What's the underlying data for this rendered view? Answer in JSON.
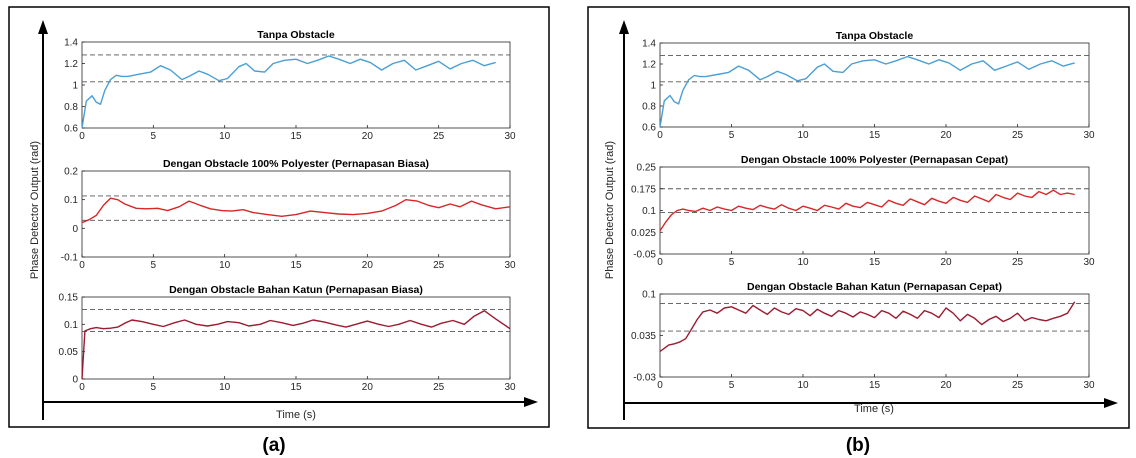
{
  "figure": {
    "panel_captions": [
      "(a)",
      "(b)"
    ],
    "colors": {
      "threshold": "#555555",
      "series_blue": "#4a9fd4",
      "series_red": "#d62728",
      "series_darkred": "#9b1b30",
      "frame": "#000000"
    }
  },
  "chart_data": [
    {
      "panel": "(a)",
      "ylabel": "Phase Detector Output (rad)",
      "xlabel": "Time (s)",
      "subplots": [
        {
          "type": "line",
          "title": "Tanpa Obstacle",
          "xlim": [
            0,
            30
          ],
          "ylim": [
            0.6,
            1.4
          ],
          "xticks": [
            0,
            5,
            10,
            15,
            20,
            25,
            30
          ],
          "yticks": [
            0.6,
            0.8,
            1,
            1.2,
            1.4
          ],
          "ytick_labels": [
            "0.6",
            "0.8",
            "1",
            "1.2",
            "1.4"
          ],
          "thresholds": [
            1.28,
            1.03
          ],
          "color": "#4a9fd4",
          "series": [
            {
              "x": [
                0,
                0.3,
                0.7,
                1.0,
                1.3,
                1.6,
                2.0,
                2.4,
                2.8,
                3.2,
                4.0,
                4.8,
                5.5,
                6.2,
                7.0,
                7.5,
                8.2,
                8.8,
                9.6,
                10.2,
                11.0,
                11.5,
                12.1,
                12.8,
                13.4,
                14.2,
                15.0,
                15.8,
                16.5,
                17.3,
                18.0,
                18.8,
                19.5,
                20.2,
                21.0,
                21.8,
                22.6,
                23.4,
                24.2,
                25.0,
                25.8,
                26.6,
                27.4,
                28.2,
                29.0
              ],
              "y": [
                0.6,
                0.85,
                0.9,
                0.84,
                0.82,
                0.95,
                1.05,
                1.09,
                1.08,
                1.08,
                1.1,
                1.12,
                1.18,
                1.14,
                1.05,
                1.08,
                1.13,
                1.1,
                1.04,
                1.06,
                1.17,
                1.2,
                1.13,
                1.12,
                1.2,
                1.23,
                1.24,
                1.2,
                1.23,
                1.27,
                1.24,
                1.2,
                1.24,
                1.21,
                1.14,
                1.2,
                1.23,
                1.14,
                1.18,
                1.22,
                1.15,
                1.2,
                1.23,
                1.18,
                1.21
              ]
            }
          ]
        },
        {
          "type": "line",
          "title": "Dengan Obstacle 100% Polyester (Pernapasan Biasa)",
          "xlim": [
            0,
            30
          ],
          "ylim": [
            -0.1,
            0.2
          ],
          "xticks": [
            0,
            5,
            10,
            15,
            20,
            25,
            30
          ],
          "yticks": [
            -0.1,
            0,
            0.1,
            0.2
          ],
          "ytick_labels": [
            "-0.1",
            "0",
            "0.1",
            "0.2"
          ],
          "thresholds": [
            0.113,
            0.028
          ],
          "color": "#d62728",
          "series": [
            {
              "x": [
                0,
                0.5,
                1.0,
                1.5,
                2.0,
                2.5,
                3.0,
                3.8,
                4.5,
                5.3,
                6.0,
                6.8,
                7.5,
                8.3,
                9.0,
                9.8,
                10.5,
                11.3,
                12.0,
                13.0,
                14.0,
                15.0,
                16.0,
                17.0,
                18.0,
                19.0,
                20.0,
                21.0,
                22.0,
                22.7,
                23.5,
                24.3,
                25.0,
                25.8,
                26.5,
                27.3,
                28.0,
                29.0,
                30.0
              ],
              "y": [
                0.02,
                0.03,
                0.045,
                0.08,
                0.105,
                0.1,
                0.085,
                0.07,
                0.068,
                0.07,
                0.062,
                0.075,
                0.095,
                0.08,
                0.068,
                0.062,
                0.06,
                0.065,
                0.055,
                0.048,
                0.042,
                0.048,
                0.06,
                0.055,
                0.05,
                0.048,
                0.052,
                0.06,
                0.08,
                0.1,
                0.095,
                0.08,
                0.072,
                0.085,
                0.075,
                0.095,
                0.082,
                0.068,
                0.075
              ]
            }
          ]
        },
        {
          "type": "line",
          "title": "Dengan Obstacle Bahan Katun (Pernapasan Biasa)",
          "xlim": [
            0,
            30
          ],
          "ylim": [
            0,
            0.15
          ],
          "xticks": [
            0,
            5,
            10,
            15,
            20,
            25,
            30
          ],
          "yticks": [
            0,
            0.05,
            0.1,
            0.15
          ],
          "ytick_labels": [
            "0",
            "0.05",
            "0.1",
            "0.15"
          ],
          "thresholds": [
            0.127,
            0.087
          ],
          "color": "#9b1b30",
          "series": [
            {
              "x": [
                0,
                0.2,
                0.6,
                1.0,
                1.5,
                2.0,
                2.5,
                3.0,
                3.5,
                4.2,
                5.0,
                5.7,
                6.5,
                7.2,
                8.0,
                8.8,
                9.5,
                10.2,
                11.0,
                11.7,
                12.5,
                13.2,
                14.0,
                14.8,
                15.5,
                16.2,
                17.0,
                17.8,
                18.5,
                19.2,
                20.0,
                20.8,
                21.5,
                22.2,
                23.0,
                23.8,
                24.5,
                25.2,
                26.0,
                26.8,
                27.5,
                28.2,
                29.0,
                30.0
              ],
              "y": [
                0.0,
                0.088,
                0.092,
                0.094,
                0.092,
                0.093,
                0.095,
                0.102,
                0.108,
                0.105,
                0.1,
                0.096,
                0.103,
                0.108,
                0.1,
                0.097,
                0.1,
                0.105,
                0.103,
                0.097,
                0.1,
                0.107,
                0.103,
                0.098,
                0.102,
                0.108,
                0.104,
                0.099,
                0.095,
                0.1,
                0.106,
                0.1,
                0.096,
                0.1,
                0.107,
                0.1,
                0.095,
                0.102,
                0.107,
                0.1,
                0.115,
                0.125,
                0.11,
                0.092
              ]
            }
          ]
        }
      ]
    },
    {
      "panel": "(b)",
      "ylabel": "Phase Detector Output (rad)",
      "xlabel": "Time (s)",
      "subplots": [
        {
          "type": "line",
          "title": "Tanpa Obstacle",
          "xlim": [
            0,
            30
          ],
          "ylim": [
            0.6,
            1.4
          ],
          "xticks": [
            0,
            5,
            10,
            15,
            20,
            25,
            30
          ],
          "yticks": [
            0.6,
            0.8,
            1,
            1.2,
            1.4
          ],
          "ytick_labels": [
            "0.6",
            "0.8",
            "1",
            "1.2",
            "1.4"
          ],
          "thresholds": [
            1.28,
            1.03
          ],
          "color": "#4a9fd4",
          "series": [
            {
              "x": [
                0,
                0.3,
                0.7,
                1.0,
                1.3,
                1.6,
                2.0,
                2.4,
                2.8,
                3.2,
                4.0,
                4.8,
                5.5,
                6.2,
                7.0,
                7.5,
                8.2,
                8.8,
                9.6,
                10.2,
                11.0,
                11.5,
                12.1,
                12.8,
                13.4,
                14.2,
                15.0,
                15.8,
                16.5,
                17.3,
                18.0,
                18.8,
                19.5,
                20.2,
                21.0,
                21.8,
                22.6,
                23.4,
                24.2,
                25.0,
                25.8,
                26.6,
                27.4,
                28.2,
                29.0
              ],
              "y": [
                0.6,
                0.85,
                0.9,
                0.84,
                0.82,
                0.95,
                1.05,
                1.09,
                1.08,
                1.08,
                1.1,
                1.12,
                1.18,
                1.14,
                1.05,
                1.08,
                1.13,
                1.1,
                1.04,
                1.06,
                1.17,
                1.2,
                1.13,
                1.12,
                1.2,
                1.23,
                1.24,
                1.2,
                1.23,
                1.27,
                1.24,
                1.2,
                1.24,
                1.21,
                1.14,
                1.2,
                1.23,
                1.14,
                1.18,
                1.22,
                1.15,
                1.2,
                1.23,
                1.18,
                1.21
              ]
            }
          ]
        },
        {
          "type": "line",
          "title": "Dengan Obstacle 100% Polyester (Pernapasan Cepat)",
          "xlim": [
            0,
            30
          ],
          "ylim": [
            -0.05,
            0.25
          ],
          "xticks": [
            0,
            5,
            10,
            15,
            20,
            25,
            30
          ],
          "yticks": [
            -0.05,
            0.025,
            0.1,
            0.175,
            0.25
          ],
          "ytick_labels": [
            "-0.05",
            "0.025",
            "0.1",
            "0.175",
            "0.25"
          ],
          "thresholds": [
            0.175,
            0.093
          ],
          "color": "#d62728",
          "series": [
            {
              "x": [
                0,
                0.4,
                0.8,
                1.2,
                1.6,
                2.0,
                2.5,
                3.0,
                3.5,
                4.0,
                4.5,
                5.0,
                5.5,
                6.0,
                6.5,
                7.0,
                7.5,
                8.0,
                8.5,
                9.0,
                9.5,
                10.0,
                10.5,
                11.0,
                11.5,
                12.0,
                12.5,
                13.0,
                13.5,
                14.0,
                14.5,
                15.0,
                15.5,
                16.0,
                16.5,
                17.0,
                17.5,
                18.0,
                18.5,
                19.0,
                19.5,
                20.0,
                20.5,
                21.0,
                21.5,
                22.0,
                22.5,
                23.0,
                23.5,
                24.0,
                24.5,
                25.0,
                25.5,
                26.0,
                26.5,
                27.0,
                27.5,
                28.0,
                28.5,
                29.0
              ],
              "y": [
                0.03,
                0.06,
                0.085,
                0.1,
                0.105,
                0.1,
                0.097,
                0.108,
                0.1,
                0.112,
                0.105,
                0.1,
                0.115,
                0.108,
                0.103,
                0.118,
                0.11,
                0.105,
                0.12,
                0.108,
                0.1,
                0.115,
                0.108,
                0.1,
                0.118,
                0.112,
                0.105,
                0.125,
                0.115,
                0.11,
                0.128,
                0.12,
                0.112,
                0.135,
                0.125,
                0.118,
                0.14,
                0.13,
                0.12,
                0.142,
                0.132,
                0.125,
                0.145,
                0.135,
                0.128,
                0.15,
                0.14,
                0.13,
                0.155,
                0.145,
                0.138,
                0.16,
                0.15,
                0.145,
                0.165,
                0.155,
                0.17,
                0.155,
                0.16,
                0.155
              ]
            }
          ]
        },
        {
          "type": "line",
          "title": "Dengan Obstacle Bahan Katun (Pernapasan Cepat)",
          "xlim": [
            0,
            30
          ],
          "ylim": [
            -0.03,
            0.1
          ],
          "xticks": [
            0,
            5,
            10,
            15,
            20,
            25,
            30
          ],
          "yticks": [
            -0.03,
            0.035,
            0.1
          ],
          "ytick_labels": [
            "-0.03",
            "0.035",
            "0.1"
          ],
          "thresholds": [
            0.085,
            0.042
          ],
          "color": "#9b1b30",
          "series": [
            {
              "x": [
                0,
                0.3,
                0.6,
                1.0,
                1.4,
                1.8,
                2.2,
                2.6,
                3.0,
                3.5,
                4.0,
                4.5,
                5.0,
                5.5,
                6.0,
                6.5,
                7.0,
                7.5,
                8.0,
                8.5,
                9.0,
                9.5,
                10.0,
                10.5,
                11.0,
                11.5,
                12.0,
                12.5,
                13.0,
                13.5,
                14.0,
                14.5,
                15.0,
                15.5,
                16.0,
                16.5,
                17.0,
                17.5,
                18.0,
                18.5,
                19.0,
                19.5,
                20.0,
                20.5,
                21.0,
                21.5,
                22.0,
                22.5,
                23.0,
                23.5,
                24.0,
                24.5,
                25.0,
                25.5,
                26.0,
                26.5,
                27.0,
                27.5,
                28.0,
                28.5,
                29.0
              ],
              "y": [
                0.01,
                0.015,
                0.02,
                0.022,
                0.025,
                0.03,
                0.045,
                0.06,
                0.072,
                0.075,
                0.07,
                0.078,
                0.08,
                0.075,
                0.07,
                0.082,
                0.075,
                0.068,
                0.078,
                0.072,
                0.068,
                0.077,
                0.074,
                0.066,
                0.076,
                0.07,
                0.065,
                0.074,
                0.07,
                0.064,
                0.072,
                0.068,
                0.063,
                0.074,
                0.07,
                0.062,
                0.073,
                0.068,
                0.062,
                0.074,
                0.07,
                0.063,
                0.078,
                0.07,
                0.058,
                0.068,
                0.062,
                0.052,
                0.06,
                0.065,
                0.057,
                0.062,
                0.07,
                0.058,
                0.063,
                0.06,
                0.058,
                0.062,
                0.065,
                0.07,
                0.088
              ]
            }
          ]
        }
      ]
    }
  ]
}
